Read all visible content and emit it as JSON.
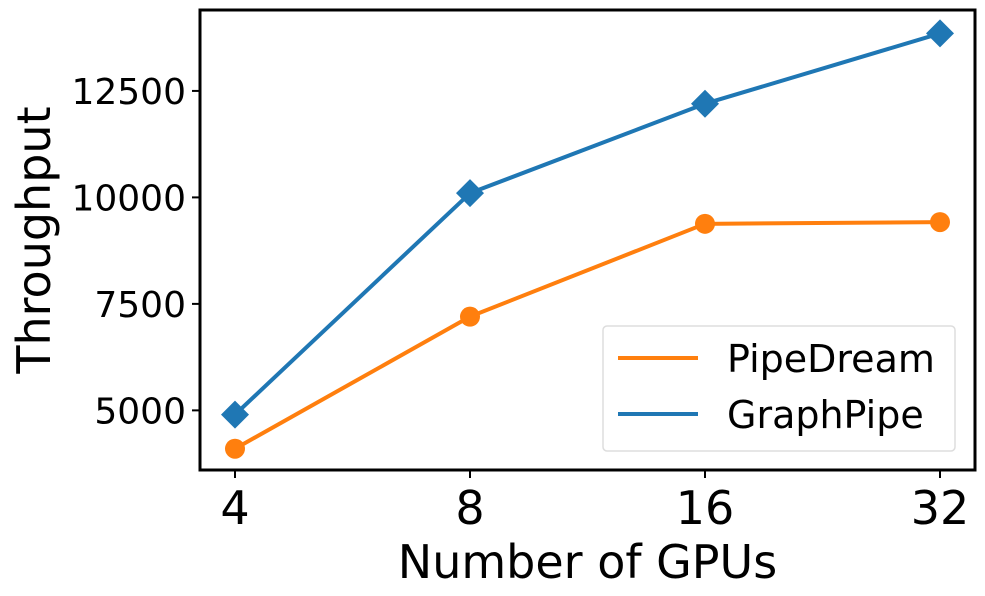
{
  "chart_data": {
    "type": "line",
    "xlabel": "Number of GPUs",
    "ylabel": "Throughput",
    "categories": [
      "4",
      "8",
      "16",
      "32"
    ],
    "ylim": [
      3600,
      14400
    ],
    "yticks": [
      5000,
      7500,
      10000,
      12500
    ],
    "yticklabels": [
      "5000",
      "7500",
      "10000",
      "12500"
    ],
    "grid": false,
    "legend_position": "lower-right",
    "series": [
      {
        "name": "PipeDream",
        "color": "#ff7f0e",
        "marker": "circle",
        "values": [
          4100,
          7200,
          9380,
          9420
        ]
      },
      {
        "name": "GraphPipe",
        "color": "#1f77b4",
        "marker": "diamond",
        "values": [
          4900,
          10100,
          12200,
          13850
        ]
      }
    ]
  }
}
